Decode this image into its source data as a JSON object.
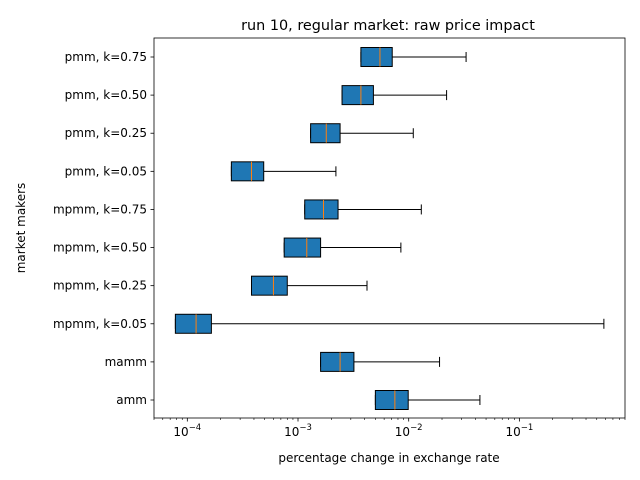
{
  "chart_data": {
    "type": "boxplot",
    "orientation": "horizontal",
    "title": "run 10, regular market: raw price impact",
    "xlabel": "percentage change in exchange rate",
    "ylabel": "market makers",
    "xscale": "log",
    "xlim": [
      5e-05,
      0.9
    ],
    "x_ticks": [
      {
        "value": 0.0001,
        "base": "10",
        "exp": "−4"
      },
      {
        "value": 0.001,
        "base": "10",
        "exp": "−3"
      },
      {
        "value": 0.01,
        "base": "10",
        "exp": "−2"
      },
      {
        "value": 0.1,
        "base": "10",
        "exp": "−1"
      }
    ],
    "grid": false,
    "box_color": "#1f77b4",
    "median_color": "#ff7f0e",
    "categories": [
      "pmm, k=0.75",
      "pmm, k=0.50",
      "pmm, k=0.25",
      "pmm, k=0.05",
      "mpmm, k=0.75",
      "mpmm, k=0.50",
      "mpmm, k=0.25",
      "mpmm, k=0.05",
      "mamm",
      "amm"
    ],
    "boxes": [
      {
        "label": "pmm, k=0.75",
        "whislo": 0.0037,
        "q1": 0.0037,
        "median": 0.0055,
        "q3": 0.0071,
        "whishi": 0.033
      },
      {
        "label": "pmm, k=0.50",
        "whislo": 0.0025,
        "q1": 0.0025,
        "median": 0.0037,
        "q3": 0.0048,
        "whishi": 0.022
      },
      {
        "label": "pmm, k=0.25",
        "whislo": 0.0013,
        "q1": 0.0013,
        "median": 0.0018,
        "q3": 0.0024,
        "whishi": 0.011
      },
      {
        "label": "pmm, k=0.05",
        "whislo": 0.00025,
        "q1": 0.00025,
        "median": 0.00038,
        "q3": 0.00049,
        "whishi": 0.0022
      },
      {
        "label": "mpmm, k=0.75",
        "whislo": 0.00115,
        "q1": 0.00115,
        "median": 0.0017,
        "q3": 0.0023,
        "whishi": 0.013
      },
      {
        "label": "mpmm, k=0.50",
        "whislo": 0.00075,
        "q1": 0.00075,
        "median": 0.0012,
        "q3": 0.0016,
        "whishi": 0.0085
      },
      {
        "label": "mpmm, k=0.25",
        "whislo": 0.00038,
        "q1": 0.00038,
        "median": 0.0006,
        "q3": 0.0008,
        "whishi": 0.0042
      },
      {
        "label": "mpmm, k=0.05",
        "whislo": 7.8e-05,
        "q1": 7.8e-05,
        "median": 0.00012,
        "q3": 0.000165,
        "whishi": 0.58
      },
      {
        "label": "mamm",
        "whislo": 0.0016,
        "q1": 0.0016,
        "median": 0.0024,
        "q3": 0.0032,
        "whishi": 0.019
      },
      {
        "label": "amm",
        "whislo": 0.005,
        "q1": 0.005,
        "median": 0.0075,
        "q3": 0.0099,
        "whishi": 0.044
      }
    ]
  }
}
